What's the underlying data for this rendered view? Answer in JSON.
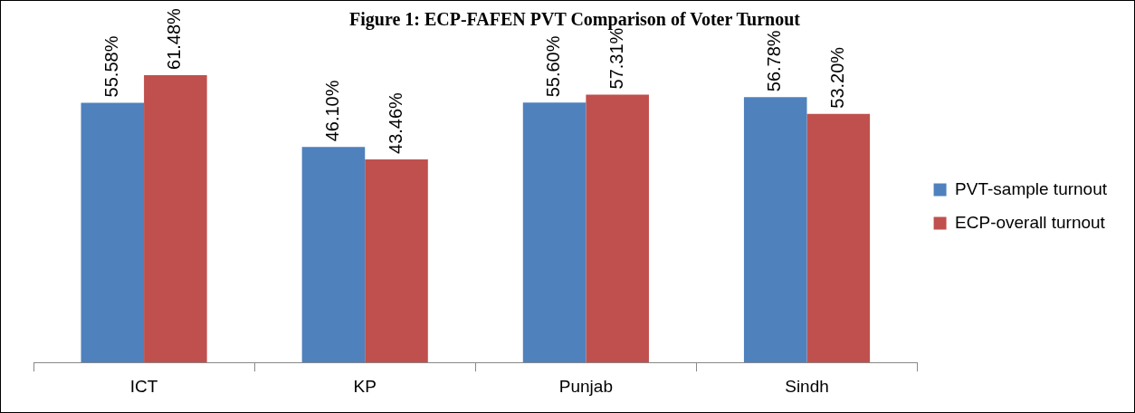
{
  "chart_data": {
    "type": "bar",
    "title": "Figure 1: ECP-FAFEN PVT Comparison of Voter Turnout",
    "categories": [
      "ICT",
      "KP",
      "Punjab",
      "Sindh"
    ],
    "series": [
      {
        "name": "PVT-sample turnout",
        "color": "#4f81bd",
        "values": [
          55.58,
          46.1,
          55.6,
          56.78
        ],
        "value_labels": [
          "55.58%",
          "46.10%",
          "55.60%",
          "56.78%"
        ]
      },
      {
        "name": "ECP-overall turnout",
        "color": "#c0504d",
        "values": [
          61.48,
          43.46,
          57.31,
          53.2
        ],
        "value_labels": [
          "61.48%",
          "43.46%",
          "57.31%",
          "53.20%"
        ]
      }
    ],
    "legend": "right",
    "grid": false,
    "tick_labels": "x"
  }
}
